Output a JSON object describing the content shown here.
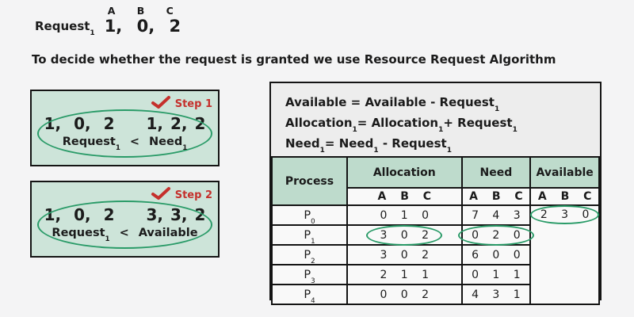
{
  "colors": {
    "page_background": "#f4f4f5",
    "step_box_green": "#cde4d9",
    "table_header_green": "#bedbcc",
    "ellipse_green": "#2a9b68",
    "step_red": "#c5302c",
    "border_black": "#141414"
  },
  "request": {
    "label": "Request",
    "label_sub": "1",
    "columns": [
      "A",
      "B",
      "C"
    ],
    "values": "1, 0, 2"
  },
  "intro": "To decide whether the request is granted we use Resource Request Algorithm",
  "steps": [
    {
      "badge": "Step 1",
      "left_values": "1, 0, 2",
      "right_values": "1, 2, 2",
      "left_label": {
        "base": "Request",
        "sub": "1"
      },
      "op": "<",
      "right_label": {
        "base": "Need",
        "sub": "1"
      }
    },
    {
      "badge": "Step 2",
      "left_values": "1, 0, 2",
      "right_values": "3, 3, 2",
      "left_label": {
        "base": "Request",
        "sub": "1"
      },
      "op": "<",
      "right_label": {
        "base": "Available",
        "sub": ""
      }
    }
  ],
  "formulas": [
    {
      "segments": [
        {
          "t": "Available = Available - Request"
        },
        {
          "sub": "1"
        }
      ]
    },
    {
      "segments": [
        {
          "t": "Allocation"
        },
        {
          "sub": "1"
        },
        {
          "t": "= Allocation"
        },
        {
          "sub": "1"
        },
        {
          "t": "+ Request"
        },
        {
          "sub": "1"
        }
      ]
    },
    {
      "segments": [
        {
          "t": "Need"
        },
        {
          "sub": "1"
        },
        {
          "t": "= Need"
        },
        {
          "sub": "1"
        },
        {
          "t": " - Request"
        },
        {
          "sub": "1"
        }
      ]
    }
  ],
  "table": {
    "headers": {
      "process": "Process",
      "allocation": "Allocation",
      "need": "Need",
      "available": "Available"
    },
    "subheader": [
      "A",
      "B",
      "C"
    ],
    "rows": [
      {
        "name": "P",
        "sub": "0",
        "allocation": [
          "0",
          "1",
          "0"
        ],
        "need": [
          "7",
          "4",
          "3"
        ],
        "allocation_circled": false,
        "need_circled": false
      },
      {
        "name": "P",
        "sub": "1",
        "allocation": [
          "3",
          "0",
          "2"
        ],
        "need": [
          "0",
          "2",
          "0"
        ],
        "allocation_circled": true,
        "need_circled": true
      },
      {
        "name": "P",
        "sub": "2",
        "allocation": [
          "3",
          "0",
          "2"
        ],
        "need": [
          "6",
          "0",
          "0"
        ],
        "allocation_circled": false,
        "need_circled": false
      },
      {
        "name": "P",
        "sub": "3",
        "allocation": [
          "2",
          "1",
          "1"
        ],
        "need": [
          "0",
          "1",
          "1"
        ],
        "allocation_circled": false,
        "need_circled": false
      },
      {
        "name": "P",
        "sub": "4",
        "allocation": [
          "0",
          "0",
          "2"
        ],
        "need": [
          "4",
          "3",
          "1"
        ],
        "allocation_circled": false,
        "need_circled": false
      }
    ],
    "available_values": [
      "2",
      "3",
      "0"
    ],
    "available_circled": true
  }
}
